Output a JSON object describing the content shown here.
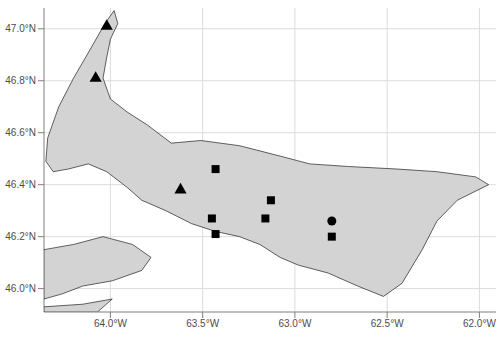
{
  "chart_data": {
    "type": "scatter",
    "grid": true,
    "xlim": [
      -64.36,
      -61.91
    ],
    "ylim": [
      45.91,
      47.08
    ],
    "xticks": [
      {
        "value": -64,
        "label": "64.0°W"
      },
      {
        "value": -63.5,
        "label": "63.5°W"
      },
      {
        "value": -63,
        "label": "63.0°W"
      },
      {
        "value": -62.5,
        "label": "62.5°W"
      },
      {
        "value": -62,
        "label": "62.0°W"
      }
    ],
    "yticks": [
      {
        "value": 46,
        "label": "46.0°N"
      },
      {
        "value": 46.2,
        "label": "46.2°N"
      },
      {
        "value": 46.4,
        "label": "46.4°N"
      },
      {
        "value": 46.6,
        "label": "46.6°N"
      },
      {
        "value": 46.8,
        "label": "46.8°N"
      },
      {
        "value": 47,
        "label": "47.0°N"
      }
    ],
    "land": {
      "color": "#d3d3d3",
      "polygons": [
        [
          [
            -63.98,
            47.07
          ],
          [
            -63.96,
            47.02
          ],
          [
            -64.0,
            46.96
          ],
          [
            -64.02,
            46.89
          ],
          [
            -64.04,
            46.81
          ],
          [
            -64.0,
            46.73
          ],
          [
            -63.91,
            46.68
          ],
          [
            -63.8,
            46.63
          ],
          [
            -63.67,
            46.56
          ],
          [
            -63.51,
            46.57
          ],
          [
            -63.3,
            46.55
          ],
          [
            -63.08,
            46.51
          ],
          [
            -62.92,
            46.48
          ],
          [
            -62.71,
            46.47
          ],
          [
            -62.44,
            46.46
          ],
          [
            -62.23,
            46.45
          ],
          [
            -62.02,
            46.43
          ],
          [
            -61.95,
            46.4
          ],
          [
            -62.12,
            46.34
          ],
          [
            -62.23,
            46.26
          ],
          [
            -62.31,
            46.15
          ],
          [
            -62.42,
            46.02
          ],
          [
            -62.52,
            45.97
          ],
          [
            -62.66,
            46.01
          ],
          [
            -62.82,
            46.06
          ],
          [
            -62.98,
            46.09
          ],
          [
            -63.08,
            46.12
          ],
          [
            -63.19,
            46.17
          ],
          [
            -63.3,
            46.2
          ],
          [
            -63.43,
            46.22
          ],
          [
            -63.56,
            46.25
          ],
          [
            -63.7,
            46.3
          ],
          [
            -63.83,
            46.34
          ],
          [
            -63.91,
            46.39
          ],
          [
            -64.02,
            46.45
          ],
          [
            -64.12,
            46.48
          ],
          [
            -64.23,
            46.46
          ],
          [
            -64.31,
            46.45
          ],
          [
            -64.35,
            46.49
          ],
          [
            -64.34,
            46.58
          ],
          [
            -64.28,
            46.7
          ],
          [
            -64.2,
            46.81
          ],
          [
            -64.11,
            46.92
          ],
          [
            -64.03,
            47.02
          ]
        ],
        [
          [
            -64.36,
            46.15
          ],
          [
            -64.2,
            46.17
          ],
          [
            -64.04,
            46.2
          ],
          [
            -63.88,
            46.17
          ],
          [
            -63.78,
            46.12
          ],
          [
            -63.83,
            46.07
          ],
          [
            -63.99,
            46.03
          ],
          [
            -64.15,
            46.01
          ],
          [
            -64.26,
            45.98
          ],
          [
            -64.36,
            45.96
          ]
        ],
        [
          [
            -64.36,
            45.91
          ],
          [
            -64.07,
            45.91
          ],
          [
            -63.99,
            45.96
          ],
          [
            -64.15,
            45.94
          ],
          [
            -64.36,
            45.93
          ]
        ]
      ]
    },
    "series": [
      {
        "marker": "triangle",
        "color": "#000000",
        "x": [
          -64.02,
          -64.08,
          -63.62
        ],
        "y": [
          47.01,
          46.81,
          46.38
        ]
      },
      {
        "marker": "square",
        "color": "#000000",
        "x": [
          -63.43,
          -63.45,
          -63.43,
          -63.13,
          -63.16,
          -62.8
        ],
        "y": [
          46.46,
          46.27,
          46.21,
          46.34,
          46.27,
          46.2
        ]
      },
      {
        "marker": "circle",
        "color": "#000000",
        "x": [
          -62.8
        ],
        "y": [
          46.26
        ]
      }
    ]
  }
}
